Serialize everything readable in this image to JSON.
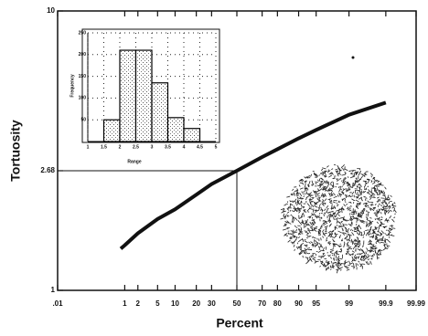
{
  "chart_data": [
    {
      "type": "line",
      "xlabel": "Percent",
      "ylabel": "Tortuosity",
      "xscale": "probability",
      "yscale": "log",
      "x": [
        0.8,
        1,
        2,
        5,
        10,
        20,
        30,
        50,
        70,
        80,
        90,
        95,
        99,
        99.9
      ],
      "series": [
        {
          "color": "#111111",
          "values": [
            1.41,
            1.45,
            1.6,
            1.8,
            1.95,
            2.2,
            2.4,
            2.68,
            3.0,
            3.2,
            3.5,
            3.75,
            4.25,
            4.7
          ]
        }
      ],
      "xlim": [
        0.01,
        99.99
      ],
      "xticks": [
        {
          "value": 0.01,
          "label": ".01"
        },
        1,
        2,
        5,
        10,
        20,
        30,
        50,
        70,
        80,
        90,
        95,
        99,
        99.9,
        99.99
      ],
      "ylim": [
        1,
        10
      ],
      "yticks": [
        1,
        2.68,
        10
      ],
      "guide": {
        "x": 50,
        "y": 2.68
      }
    },
    {
      "type": "histogram",
      "xlabel": "Range",
      "ylabel": "Frequency",
      "bins": [
        1.5,
        2,
        2.5,
        3,
        3.5,
        4,
        4.5
      ],
      "values": [
        50,
        210,
        210,
        135,
        55,
        30
      ],
      "color": "#000000",
      "xlim": [
        1,
        5
      ],
      "xticks": [
        1,
        1.5,
        2,
        2.5,
        3,
        3.5,
        4,
        4.5,
        5
      ],
      "ylim": [
        0,
        250
      ],
      "yticks": [
        50,
        100,
        150,
        200,
        250
      ],
      "grid": true
    }
  ]
}
